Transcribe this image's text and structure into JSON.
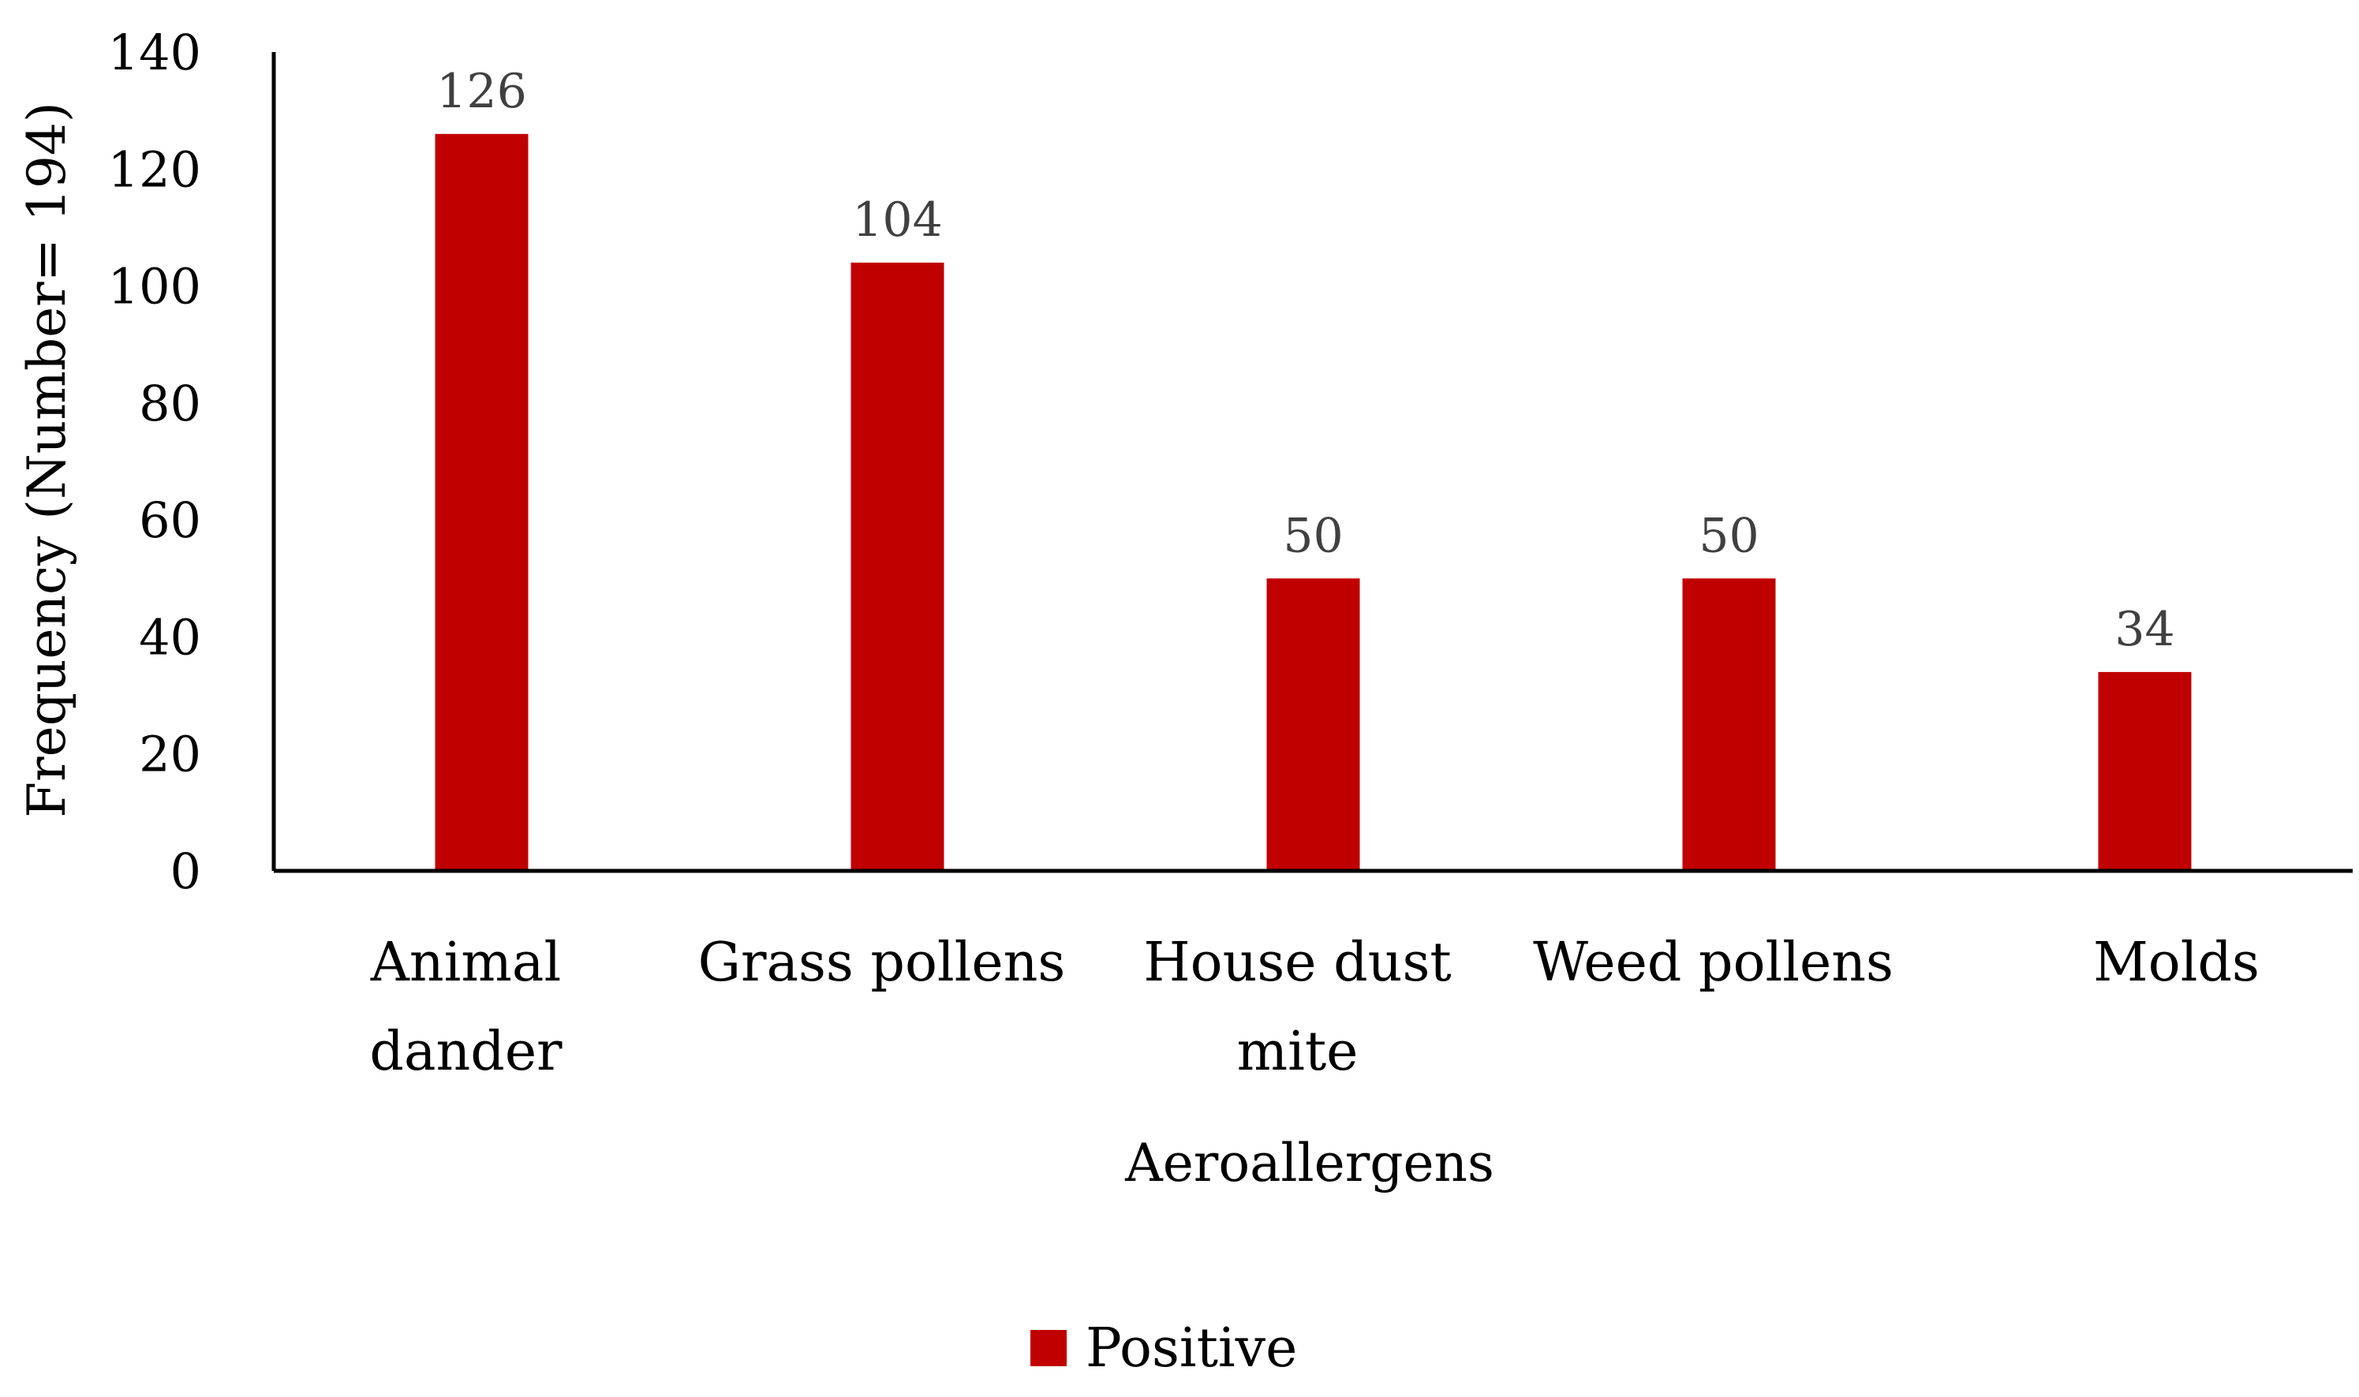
{
  "chart_data": {
    "type": "bar",
    "categories": [
      "Animal dander",
      "Grass pollens",
      "House dust mite",
      "Weed pollens",
      "Molds"
    ],
    "category_lines": [
      [
        "Animal",
        "dander"
      ],
      [
        "Grass pollens"
      ],
      [
        "House dust",
        "mite"
      ],
      [
        "Weed pollens"
      ],
      [
        "Molds"
      ]
    ],
    "series": [
      {
        "name": "Positive",
        "values": [
          126,
          104,
          50,
          50,
          34
        ],
        "color": "#C00000"
      }
    ],
    "data_labels": [
      "126",
      "104",
      "50",
      "50",
      "34"
    ],
    "yticks": [
      0,
      20,
      40,
      60,
      80,
      100,
      120,
      140
    ],
    "xlabel": "Aeroallergens",
    "ylabel": "Frequency (Number= 194)",
    "ylim": [
      0,
      140
    ],
    "grid": false,
    "legend_position": "bottom-center"
  }
}
